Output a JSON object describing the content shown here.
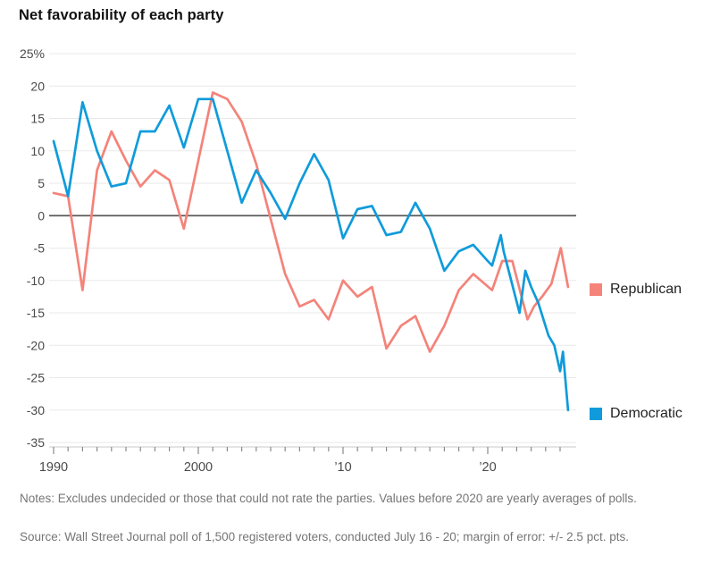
{
  "title": "Net favorability of each party",
  "notes": "Notes: Excludes undecided or those that could not rate the parties. Values before 2020 are yearly averages of polls.",
  "source": "Source: Wall Street Journal poll of 1,500 registered voters, conducted July 16 - 20; margin of error: +/- 2.5 pct. pts.",
  "colors": {
    "republican": "#f4837a",
    "democratic": "#0f9bdb",
    "grid": "#e9e9e9",
    "zero_line": "#5a5a5a",
    "axis_line": "#c8c8c8",
    "tick": "#8a8a8a",
    "axis_text": "#4a4a4a"
  },
  "chart_data": {
    "type": "line",
    "title": "Net favorability of each party",
    "xlabel": "",
    "ylabel": "",
    "grid": true,
    "legend_position": "right",
    "ylim": [
      -35,
      25
    ],
    "xlim": [
      1990,
      2025.8
    ],
    "yticks": [
      25,
      20,
      15,
      10,
      5,
      0,
      -5,
      -10,
      -15,
      -20,
      -25,
      -30,
      -35
    ],
    "ytick_labels": [
      "25%",
      "20",
      "15",
      "10",
      "5",
      "0",
      "-5",
      "-10",
      "-15",
      "-20",
      "-25",
      "-30",
      "-35"
    ],
    "xticks_major": [
      1990,
      2000,
      2010,
      2020
    ],
    "xtick_labels": [
      "1990",
      "2000",
      "’10",
      "’20"
    ],
    "xticks_minor_every_year": [
      1990,
      2025
    ],
    "series": [
      {
        "name": "Republican",
        "color": "#f4837a",
        "points": [
          [
            1990,
            3.5
          ],
          [
            1991,
            3
          ],
          [
            1992,
            -11.5
          ],
          [
            1993,
            7
          ],
          [
            1994,
            13
          ],
          [
            1995,
            8.5
          ],
          [
            1996,
            4.5
          ],
          [
            1997,
            7
          ],
          [
            1998,
            5.5
          ],
          [
            1999,
            -2
          ],
          [
            2000,
            8.5
          ],
          [
            2001,
            19
          ],
          [
            2002,
            18
          ],
          [
            2003,
            14.5
          ],
          [
            2004,
            8
          ],
          [
            2005,
            -0.5
          ],
          [
            2006,
            -9
          ],
          [
            2007,
            -14
          ],
          [
            2008,
            -13
          ],
          [
            2009,
            -16
          ],
          [
            2010,
            -10
          ],
          [
            2011,
            -12.5
          ],
          [
            2012,
            -11
          ],
          [
            2013,
            -20.5
          ],
          [
            2014,
            -17
          ],
          [
            2015,
            -15.5
          ],
          [
            2016,
            -21
          ],
          [
            2017,
            -17
          ],
          [
            2018,
            -11.5
          ],
          [
            2019,
            -9
          ],
          [
            2020.3,
            -11.5
          ],
          [
            2021.0,
            -7
          ],
          [
            2021.7,
            -7
          ],
          [
            2022.75,
            -16
          ],
          [
            2023.2,
            -14
          ],
          [
            2023.75,
            -12.5
          ],
          [
            2024.4,
            -10.5
          ],
          [
            2025.05,
            -5
          ],
          [
            2025.55,
            -11
          ]
        ]
      },
      {
        "name": "Democratic",
        "color": "#0f9bdb",
        "points": [
          [
            1990,
            11.5
          ],
          [
            1991,
            3
          ],
          [
            1992,
            17.5
          ],
          [
            1993,
            10
          ],
          [
            1994,
            4.5
          ],
          [
            1995,
            5
          ],
          [
            1996,
            13
          ],
          [
            1997,
            13
          ],
          [
            1998,
            17
          ],
          [
            1999,
            10.5
          ],
          [
            2000,
            18
          ],
          [
            2001,
            18
          ],
          [
            2002,
            10
          ],
          [
            2003,
            2
          ],
          [
            2004,
            7
          ],
          [
            2005,
            3.5
          ],
          [
            2006,
            -0.5
          ],
          [
            2007,
            5
          ],
          [
            2008,
            9.5
          ],
          [
            2009,
            5.5
          ],
          [
            2010,
            -3.5
          ],
          [
            2011,
            1
          ],
          [
            2012,
            1.5
          ],
          [
            2013,
            -3
          ],
          [
            2014,
            -2.5
          ],
          [
            2015,
            2
          ],
          [
            2016,
            -2
          ],
          [
            2017,
            -8.5
          ],
          [
            2018,
            -5.5
          ],
          [
            2019,
            -4.5
          ],
          [
            2020.0,
            -7
          ],
          [
            2020.3,
            -7.7
          ],
          [
            2020.9,
            -3
          ],
          [
            2021.1,
            -5.5
          ],
          [
            2022.2,
            -15
          ],
          [
            2022.6,
            -8.5
          ],
          [
            2023.0,
            -11
          ],
          [
            2023.5,
            -13.5
          ],
          [
            2024.2,
            -18.5
          ],
          [
            2024.6,
            -20
          ],
          [
            2025.0,
            -24
          ],
          [
            2025.2,
            -21
          ],
          [
            2025.55,
            -30
          ]
        ]
      }
    ]
  }
}
